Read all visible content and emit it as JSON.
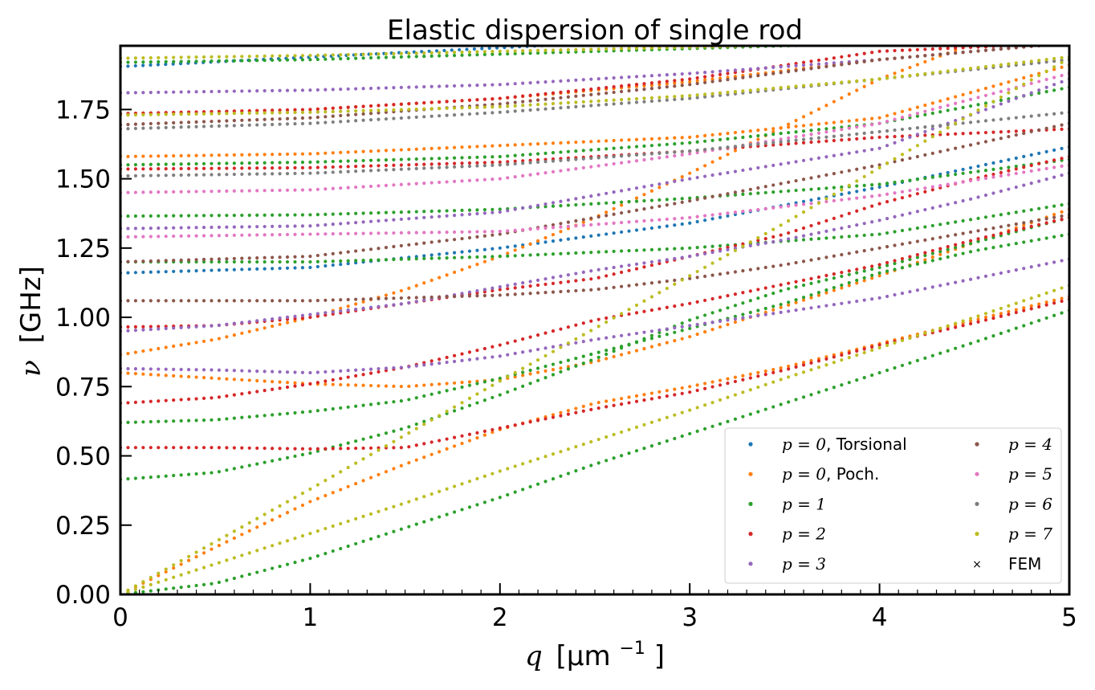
{
  "chart_data": {
    "type": "scatter",
    "title": "Elastic dispersion of single rod",
    "xlabel": {
      "symbol": "q",
      "unit_open": "[μm",
      "unit_exp": "−1",
      "unit_close": "]"
    },
    "ylabel": {
      "symbol": "ν",
      "unit": "[GHz]"
    },
    "xlim": [
      0,
      5
    ],
    "ylim": [
      0,
      1.98
    ],
    "x_ticks": [
      "0",
      "1",
      "2",
      "3",
      "4",
      "5"
    ],
    "y_ticks": [
      "0.00",
      "0.25",
      "0.50",
      "0.75",
      "1.00",
      "1.25",
      "1.50",
      "1.75"
    ],
    "grid": false,
    "legend_placement": "lower-right",
    "legend": [
      {
        "math": "p = 0",
        "text": ", Torsional",
        "color": "#1f77b4",
        "marker": "dot"
      },
      {
        "math": "p = 0",
        "text": ", Poch.",
        "color": "#ff7f0e",
        "marker": "dot"
      },
      {
        "math": "p = 1",
        "text": "",
        "color": "#2ca02c",
        "marker": "dot"
      },
      {
        "math": "p = 2",
        "text": "",
        "color": "#d62728",
        "marker": "dot"
      },
      {
        "math": "p = 3",
        "text": "",
        "color": "#9467bd",
        "marker": "dot"
      },
      {
        "math": "p = 4",
        "text": "",
        "color": "#8c564b",
        "marker": "dot"
      },
      {
        "math": "p = 5",
        "text": "",
        "color": "#e377c2",
        "marker": "dot"
      },
      {
        "math": "p = 6",
        "text": "",
        "color": "#7f7f7f",
        "marker": "dot"
      },
      {
        "math": "p = 7",
        "text": "",
        "color": "#bcbd22",
        "marker": "dot"
      },
      {
        "math": "",
        "text": "FEM",
        "color": "#000000",
        "marker": "x"
      }
    ],
    "branches": [
      {
        "series": "p = 0, Torsional",
        "color": "#1f77b4",
        "x": [
          0,
          2.5
        ],
        "y": [
          1.905,
          1.99
        ]
      },
      {
        "series": "p = 0, Torsional",
        "color": "#1f77b4",
        "x": [
          0,
          1,
          2,
          3,
          4,
          5
        ],
        "y": [
          1.16,
          1.18,
          1.25,
          1.34,
          1.47,
          1.615
        ]
      },
      {
        "series": "p = 0, Poch.",
        "color": "#ff7f0e",
        "x": [
          0,
          0.5,
          1,
          1.5,
          2,
          2.5,
          3,
          3.5,
          4,
          4.5,
          5
        ],
        "y": [
          0,
          0.17,
          0.335,
          0.47,
          0.595,
          0.69,
          0.75,
          0.82,
          0.905,
          0.99,
          1.075
        ]
      },
      {
        "series": "p = 0, Poch.",
        "color": "#ff7f0e",
        "x": [
          0,
          0.5,
          1,
          1.5,
          2,
          2.5,
          3,
          3.5,
          4,
          4.5,
          5
        ],
        "y": [
          0.8,
          0.78,
          0.76,
          0.75,
          0.775,
          0.84,
          0.93,
          1.04,
          1.15,
          1.27,
          1.39
        ]
      },
      {
        "series": "p = 0, Poch.",
        "color": "#ff7f0e",
        "x": [
          0,
          0.5,
          1,
          1.5,
          2,
          2.5,
          3,
          3.5,
          4,
          4.5,
          5
        ],
        "y": [
          0.865,
          0.92,
          1.0,
          1.1,
          1.22,
          1.36,
          1.52,
          1.69,
          1.86,
          1.99,
          1.99
        ]
      },
      {
        "series": "p = 0, Poch.",
        "color": "#ff7f0e",
        "x": [
          0,
          1,
          2,
          3,
          4,
          5
        ],
        "y": [
          1.58,
          1.59,
          1.62,
          1.65,
          1.72,
          1.91
        ]
      },
      {
        "series": "p = 0, Poch.",
        "color": "#ff7f0e",
        "x": [
          0,
          1,
          2,
          3,
          4,
          5
        ],
        "y": [
          1.735,
          1.75,
          1.79,
          1.85,
          1.93,
          1.99
        ]
      },
      {
        "series": "p = 1",
        "color": "#2ca02c",
        "x": [
          0,
          0.5,
          1,
          1.5,
          2,
          2.5,
          3,
          3.5,
          4,
          4.5,
          5
        ],
        "y": [
          0,
          0.04,
          0.13,
          0.24,
          0.35,
          0.47,
          0.58,
          0.69,
          0.8,
          0.91,
          1.025
        ]
      },
      {
        "series": "p = 1",
        "color": "#2ca02c",
        "x": [
          0,
          0.5,
          1,
          1.5,
          2,
          2.5,
          3,
          3.5,
          4,
          4.5,
          5
        ],
        "y": [
          0.415,
          0.44,
          0.51,
          0.6,
          0.72,
          0.85,
          0.99,
          1.1,
          1.18,
          1.27,
          1.36
        ]
      },
      {
        "series": "p = 1",
        "color": "#2ca02c",
        "x": [
          0,
          0.5,
          1,
          1.5,
          2,
          2.5,
          3,
          3.5,
          4,
          4.5,
          5
        ],
        "y": [
          0.62,
          0.63,
          0.66,
          0.7,
          0.78,
          0.87,
          0.96,
          1.05,
          1.16,
          1.24,
          1.3
        ]
      },
      {
        "series": "p = 1",
        "color": "#2ca02c",
        "x": [
          0,
          1,
          2,
          3,
          4,
          5
        ],
        "y": [
          1.365,
          1.37,
          1.39,
          1.43,
          1.48,
          1.57
        ]
      },
      {
        "series": "p = 1",
        "color": "#2ca02c",
        "x": [
          0,
          1,
          2,
          3,
          4,
          5
        ],
        "y": [
          1.2,
          1.2,
          1.22,
          1.25,
          1.3,
          1.41
        ]
      },
      {
        "series": "p = 1",
        "color": "#2ca02c",
        "x": [
          0,
          1,
          2,
          3,
          4,
          5
        ],
        "y": [
          1.55,
          1.56,
          1.58,
          1.63,
          1.7,
          1.83
        ]
      },
      {
        "series": "p = 1",
        "color": "#2ca02c",
        "x": [
          0,
          1,
          2,
          3,
          4,
          5
        ],
        "y": [
          1.92,
          1.93,
          1.95,
          1.97,
          1.99,
          1.99
        ]
      },
      {
        "series": "p = 2",
        "color": "#d62728",
        "x": [
          0,
          0.5,
          1,
          1.5,
          2,
          2.5,
          3,
          3.5,
          4,
          4.5,
          5
        ],
        "y": [
          0.53,
          0.53,
          0.525,
          0.53,
          0.6,
          0.67,
          0.73,
          0.81,
          0.9,
          0.98,
          1.065
        ]
      },
      {
        "series": "p = 2",
        "color": "#d62728",
        "x": [
          0,
          0.5,
          1,
          1.5,
          2,
          2.5,
          3,
          3.5,
          4,
          4.5,
          5
        ],
        "y": [
          0.69,
          0.71,
          0.76,
          0.82,
          0.9,
          0.99,
          1.05,
          1.12,
          1.19,
          1.28,
          1.36
        ]
      },
      {
        "series": "p = 2",
        "color": "#d62728",
        "x": [
          0,
          0.5,
          1,
          1.5,
          2,
          2.5,
          3,
          3.5,
          4,
          4.5,
          5
        ],
        "y": [
          0.965,
          0.97,
          1.0,
          1.05,
          1.1,
          1.14,
          1.22,
          1.3,
          1.41,
          1.5,
          1.58
        ]
      },
      {
        "series": "p = 2",
        "color": "#d62728",
        "x": [
          0,
          1,
          2,
          3,
          4,
          5
        ],
        "y": [
          1.535,
          1.54,
          1.56,
          1.6,
          1.65,
          1.68
        ]
      },
      {
        "series": "p = 2",
        "color": "#d62728",
        "x": [
          0,
          1,
          2,
          3,
          4,
          5
        ],
        "y": [
          1.735,
          1.75,
          1.79,
          1.86,
          1.96,
          1.99
        ]
      },
      {
        "series": "p = 3",
        "color": "#9467bd",
        "x": [
          0,
          0.5,
          1,
          1.5,
          2,
          2.5,
          3,
          3.5,
          4,
          4.5,
          5
        ],
        "y": [
          0.815,
          0.81,
          0.8,
          0.82,
          0.86,
          0.92,
          0.97,
          1.02,
          1.07,
          1.14,
          1.21
        ]
      },
      {
        "series": "p = 3",
        "color": "#9467bd",
        "x": [
          0,
          0.5,
          1,
          1.5,
          2,
          2.5,
          3,
          3.5,
          4,
          4.5,
          5
        ],
        "y": [
          0.95,
          0.97,
          1.01,
          1.05,
          1.11,
          1.17,
          1.22,
          1.28,
          1.35,
          1.43,
          1.52
        ]
      },
      {
        "series": "p = 3",
        "color": "#9467bd",
        "x": [
          0,
          1,
          2,
          3,
          4,
          5
        ],
        "y": [
          1.32,
          1.33,
          1.38,
          1.5,
          1.61,
          1.86
        ]
      },
      {
        "series": "p = 3",
        "color": "#9467bd",
        "x": [
          0,
          1,
          2,
          3,
          4,
          5
        ],
        "y": [
          1.81,
          1.82,
          1.84,
          1.88,
          1.93,
          1.99
        ]
      },
      {
        "series": "p = 4",
        "color": "#8c564b",
        "x": [
          0,
          0.5,
          1,
          1.5,
          2,
          2.5,
          3,
          3.5,
          4,
          4.5,
          5
        ],
        "y": [
          1.06,
          1.06,
          1.06,
          1.07,
          1.08,
          1.1,
          1.14,
          1.19,
          1.25,
          1.31,
          1.37
        ]
      },
      {
        "series": "p = 4",
        "color": "#8c564b",
        "x": [
          0,
          1,
          2,
          3,
          4,
          5
        ],
        "y": [
          1.2,
          1.22,
          1.3,
          1.42,
          1.55,
          1.7
        ]
      },
      {
        "series": "p = 4",
        "color": "#8c564b",
        "x": [
          0,
          1,
          2,
          3,
          4,
          5
        ],
        "y": [
          1.695,
          1.72,
          1.77,
          1.84,
          1.93,
          1.99
        ]
      },
      {
        "series": "p = 5",
        "color": "#e377c2",
        "x": [
          0,
          1,
          2,
          3,
          4,
          5
        ],
        "y": [
          1.29,
          1.3,
          1.31,
          1.36,
          1.44,
          1.55
        ]
      },
      {
        "series": "p = 5",
        "color": "#e377c2",
        "x": [
          0,
          1,
          2,
          3,
          4,
          5
        ],
        "y": [
          1.45,
          1.46,
          1.5,
          1.59,
          1.7,
          1.88
        ]
      },
      {
        "series": "p = 6",
        "color": "#7f7f7f",
        "x": [
          0,
          1,
          2,
          3,
          4,
          5
        ],
        "y": [
          1.51,
          1.52,
          1.55,
          1.6,
          1.67,
          1.74
        ]
      },
      {
        "series": "p = 6",
        "color": "#7f7f7f",
        "x": [
          0,
          1,
          2,
          3,
          4,
          5
        ],
        "y": [
          1.68,
          1.7,
          1.74,
          1.79,
          1.86,
          1.93
        ]
      },
      {
        "series": "p = 7",
        "color": "#bcbd22",
        "x": [
          0,
          0.5,
          1,
          1.5,
          2,
          2.5,
          3,
          3.5,
          4,
          4.5,
          5
        ],
        "y": [
          0,
          0.11,
          0.22,
          0.33,
          0.445,
          0.555,
          0.665,
          0.78,
          0.89,
          1.0,
          1.115
        ]
      },
      {
        "series": "p = 7",
        "color": "#bcbd22",
        "x": [
          0,
          0.5,
          1,
          1.5,
          2,
          2.5,
          3,
          3.5,
          4,
          4.5,
          5
        ],
        "y": [
          0,
          0.19,
          0.38,
          0.575,
          0.77,
          0.96,
          1.15,
          1.34,
          1.54,
          1.74,
          1.935
        ]
      },
      {
        "series": "p = 7",
        "color": "#bcbd22",
        "x": [
          0,
          1,
          2,
          3,
          4,
          5
        ],
        "y": [
          1.73,
          1.74,
          1.76,
          1.8,
          1.86,
          1.94
        ]
      },
      {
        "series": "p = 7",
        "color": "#bcbd22",
        "x": [
          0,
          1,
          2,
          3,
          4,
          5
        ],
        "y": [
          1.935,
          1.945,
          1.96,
          1.975,
          1.99,
          1.99
        ]
      }
    ]
  }
}
